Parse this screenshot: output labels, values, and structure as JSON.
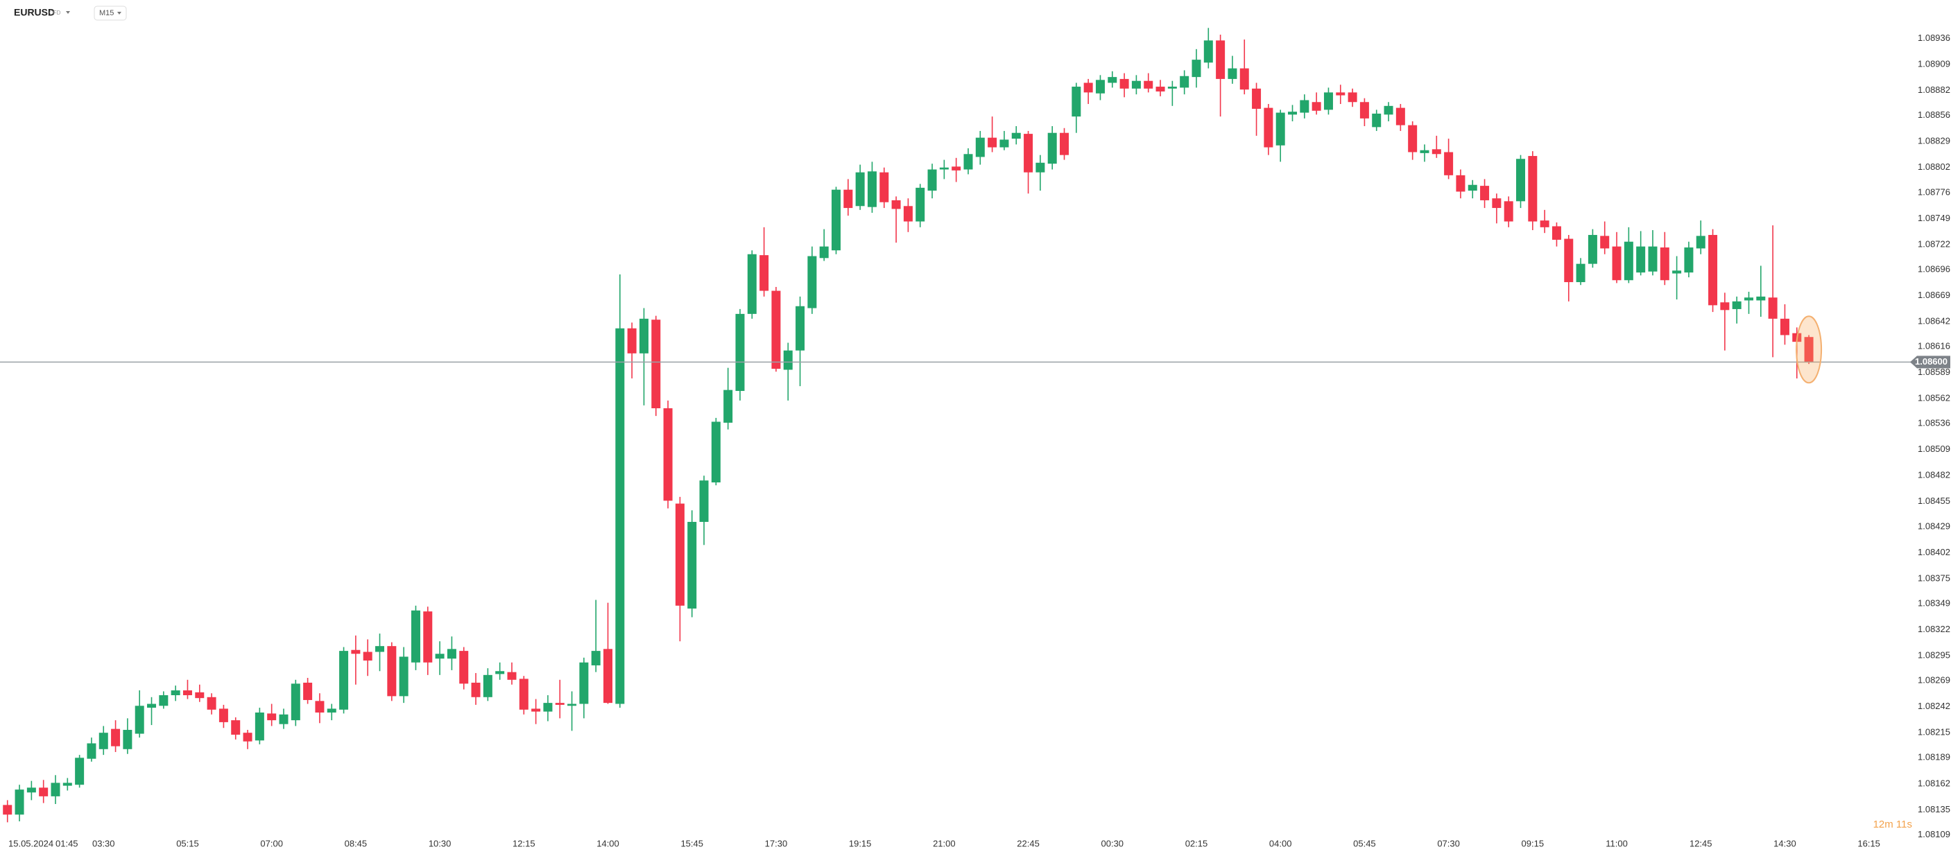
{
  "header": {
    "symbol": "EURUSD",
    "instrument_type": "CFD",
    "timeframe": "M15"
  },
  "chart_data": {
    "type": "candlestick",
    "up_color": "#22a66b",
    "down_color": "#f2364b",
    "date_label": "15.05.2024",
    "countdown": "12m 11s",
    "current_price": {
      "value": 1.086,
      "label": "1.08600"
    },
    "xlim": [
      -0.62,
      158.6
    ],
    "xticks": [
      {
        "value": 1,
        "label": "01:45"
      },
      {
        "value": 8,
        "label": "03:30"
      },
      {
        "value": 15,
        "label": "05:15"
      },
      {
        "value": 22,
        "label": "07:00"
      },
      {
        "value": 29,
        "label": "08:45"
      },
      {
        "value": 36,
        "label": "10:30"
      },
      {
        "value": 43,
        "label": "12:15"
      },
      {
        "value": 50,
        "label": "14:00"
      },
      {
        "value": 57,
        "label": "15:45"
      },
      {
        "value": 64,
        "label": "17:30"
      },
      {
        "value": 71,
        "label": "19:15"
      },
      {
        "value": 78,
        "label": "21:00"
      },
      {
        "value": 85,
        "label": "22:45"
      },
      {
        "value": 92,
        "label": "00:30"
      },
      {
        "value": 99,
        "label": "02:15"
      },
      {
        "value": 106,
        "label": "04:00"
      },
      {
        "value": 113,
        "label": "05:45"
      },
      {
        "value": 120,
        "label": "07:30"
      },
      {
        "value": 127,
        "label": "09:15"
      },
      {
        "value": 134,
        "label": "11:00"
      },
      {
        "value": 141,
        "label": "12:45"
      },
      {
        "value": 148,
        "label": "14:30"
      },
      {
        "value": 155,
        "label": "16:15"
      }
    ],
    "ylim": [
      1.08105,
      1.08976
    ],
    "yticks": [
      1.08936,
      1.08909,
      1.08882,
      1.08856,
      1.08829,
      1.08802,
      1.08776,
      1.08749,
      1.08722,
      1.08696,
      1.08669,
      1.08642,
      1.08616,
      1.08589,
      1.08562,
      1.08536,
      1.08509,
      1.08482,
      1.08455,
      1.08429,
      1.08402,
      1.08375,
      1.08349,
      1.08322,
      1.08295,
      1.08269,
      1.08242,
      1.08215,
      1.08189,
      1.08162,
      1.08135,
      1.08109
    ],
    "open": [
      1.0814,
      1.0813,
      1.08153,
      1.08158,
      1.08149,
      1.0816,
      1.08161,
      1.08188,
      1.08198,
      1.08219,
      1.08198,
      1.08214,
      1.08241,
      1.08243,
      1.08254,
      1.08259,
      1.08257,
      1.08252,
      1.0824,
      1.08228,
      1.08215,
      1.08207,
      1.08235,
      1.08224,
      1.08228,
      1.08267,
      1.08248,
      1.08236,
      1.08239,
      1.08301,
      1.08299,
      1.08299,
      1.08305,
      1.08253,
      1.08288,
      1.08341,
      1.08292,
      1.08292,
      1.083,
      1.08267,
      1.08252,
      1.08276,
      1.08278,
      1.08271,
      1.0824,
      1.08237,
      1.08246,
      1.08243,
      1.08245,
      1.08285,
      1.08302,
      1.08245,
      1.08635,
      1.08609,
      1.08644,
      1.08552,
      1.08453,
      1.08344,
      1.08434,
      1.08475,
      1.08537,
      1.0857,
      1.0865,
      1.08711,
      1.08674,
      1.08592,
      1.08612,
      1.08656,
      1.08708,
      1.08716,
      1.08779,
      1.08762,
      1.08761,
      1.08797,
      1.08768,
      1.08762,
      1.08746,
      1.08778,
      1.088,
      1.08803,
      1.088,
      1.08813,
      1.08833,
      1.08823,
      1.08832,
      1.08837,
      1.08797,
      1.08806,
      1.08838,
      1.08855,
      1.0889,
      1.08879,
      1.0889,
      1.08894,
      1.08884,
      1.08892,
      1.08886,
      1.08884,
      1.08885,
      1.08896,
      1.08911,
      1.08934,
      1.08894,
      1.08905,
      1.08884,
      1.08864,
      1.08825,
      1.08857,
      1.08859,
      1.0887,
      1.08862,
      1.0888,
      1.0888,
      1.0887,
      1.08844,
      1.08857,
      1.08864,
      1.08846,
      1.08817,
      1.08821,
      1.08818,
      1.08794,
      1.08778,
      1.08783,
      1.0877,
      1.08767,
      1.08767,
      1.08814,
      1.08747,
      1.08741,
      1.08728,
      1.08683,
      1.08702,
      1.08731,
      1.0872,
      1.08685,
      1.08693,
      1.08694,
      1.08719,
      1.08692,
      1.08693,
      1.08718,
      1.08732,
      1.08662,
      1.08655,
      1.08664,
      1.08664,
      1.08667,
      1.08645,
      1.0863,
      1.08626
    ],
    "high": [
      1.08145,
      1.08161,
      1.08165,
      1.08166,
      1.08171,
      1.08168,
      1.08192,
      1.0821,
      1.08222,
      1.08228,
      1.0823,
      1.08259,
      1.08252,
      1.08258,
      1.08264,
      1.0827,
      1.08265,
      1.08256,
      1.08244,
      1.08231,
      1.08218,
      1.08241,
      1.08245,
      1.0824,
      1.0827,
      1.08272,
      1.08256,
      1.08245,
      1.08304,
      1.08316,
      1.08312,
      1.08318,
      1.08309,
      1.08304,
      1.08347,
      1.08346,
      1.0831,
      1.08315,
      1.08304,
      1.08277,
      1.08282,
      1.08288,
      1.08288,
      1.08274,
      1.0825,
      1.08254,
      1.0827,
      1.08258,
      1.08293,
      1.08353,
      1.0835,
      1.08691,
      1.08641,
      1.08656,
      1.08648,
      1.0856,
      1.0846,
      1.08446,
      1.08482,
      1.08542,
      1.08594,
      1.08655,
      1.08716,
      1.0874,
      1.08678,
      1.0862,
      1.08668,
      1.0872,
      1.08738,
      1.08782,
      1.0879,
      1.08805,
      1.08808,
      1.08802,
      1.08772,
      1.0877,
      1.08785,
      1.08806,
      1.0881,
      1.08812,
      1.08822,
      1.0884,
      1.08855,
      1.0884,
      1.08845,
      1.0884,
      1.08815,
      1.08845,
      1.08843,
      1.0889,
      1.08894,
      1.08898,
      1.08902,
      1.089,
      1.08898,
      1.089,
      1.08893,
      1.08892,
      1.08903,
      1.08925,
      1.08947,
      1.0894,
      1.08918,
      1.08935,
      1.0889,
      1.08868,
      1.08862,
      1.08867,
      1.08878,
      1.0888,
      1.08885,
      1.08888,
      1.08884,
      1.08874,
      1.08862,
      1.0887,
      1.08868,
      1.0885,
      1.08826,
      1.08835,
      1.08832,
      1.088,
      1.08789,
      1.0879,
      1.08775,
      1.08772,
      1.08815,
      1.08819,
      1.08758,
      1.08745,
      1.08732,
      1.08708,
      1.08738,
      1.08746,
      1.08735,
      1.0874,
      1.08736,
      1.08737,
      1.08735,
      1.0871,
      1.08725,
      1.08747,
      1.08738,
      1.08672,
      1.08668,
      1.08673,
      1.087,
      1.08742,
      1.0866,
      1.08636,
      1.08628
    ],
    "low": [
      1.08122,
      1.08123,
      1.08145,
      1.08142,
      1.08141,
      1.08155,
      1.08158,
      1.08185,
      1.08192,
      1.08195,
      1.08193,
      1.0821,
      1.08223,
      1.0824,
      1.08248,
      1.0825,
      1.08247,
      1.08234,
      1.0822,
      1.08208,
      1.08198,
      1.08203,
      1.08222,
      1.08219,
      1.08222,
      1.08245,
      1.08225,
      1.08228,
      1.08235,
      1.08265,
      1.08274,
      1.08279,
      1.08248,
      1.08246,
      1.0828,
      1.08275,
      1.08275,
      1.0828,
      1.0826,
      1.08244,
      1.08248,
      1.0827,
      1.08265,
      1.08234,
      1.08224,
      1.08227,
      1.0823,
      1.08217,
      1.0823,
      1.08278,
      1.08245,
      1.08241,
      1.08583,
      1.08555,
      1.08544,
      1.08448,
      1.0831,
      1.08335,
      1.0841,
      1.08472,
      1.0853,
      1.0856,
      1.08645,
      1.08668,
      1.0859,
      1.0856,
      1.08575,
      1.0865,
      1.08705,
      1.08712,
      1.08752,
      1.08758,
      1.08755,
      1.0876,
      1.08724,
      1.08735,
      1.0874,
      1.0877,
      1.0879,
      1.08787,
      1.08795,
      1.08805,
      1.08818,
      1.0882,
      1.08826,
      1.08775,
      1.08778,
      1.088,
      1.0881,
      1.08838,
      1.08868,
      1.08872,
      1.08885,
      1.08875,
      1.08878,
      1.0888,
      1.08876,
      1.08866,
      1.08878,
      1.08885,
      1.08905,
      1.08855,
      1.08889,
      1.08878,
      1.08835,
      1.08815,
      1.08808,
      1.0885,
      1.08853,
      1.08857,
      1.08857,
      1.08868,
      1.08865,
      1.08845,
      1.0884,
      1.0885,
      1.0884,
      1.0881,
      1.08808,
      1.08812,
      1.0879,
      1.0877,
      1.0877,
      1.0876,
      1.08744,
      1.0874,
      1.0876,
      1.08737,
      1.08734,
      1.0872,
      1.08663,
      1.0868,
      1.08698,
      1.08712,
      1.08682,
      1.08682,
      1.0869,
      1.0869,
      1.0868,
      1.08665,
      1.08688,
      1.08712,
      1.08652,
      1.08612,
      1.0864,
      1.0865,
      1.08647,
      1.08605,
      1.08618,
      1.08583,
      1.08598
    ],
    "close": [
      1.0813,
      1.08156,
      1.08158,
      1.08149,
      1.08163,
      1.08163,
      1.08189,
      1.08204,
      1.08215,
      1.08201,
      1.08218,
      1.08243,
      1.08245,
      1.08254,
      1.08259,
      1.08254,
      1.08251,
      1.08239,
      1.08226,
      1.08213,
      1.08206,
      1.08236,
      1.08228,
      1.08234,
      1.08266,
      1.08249,
      1.08236,
      1.0824,
      1.083,
      1.08297,
      1.0829,
      1.08305,
      1.08253,
      1.08294,
      1.08342,
      1.08288,
      1.08297,
      1.08302,
      1.08266,
      1.08252,
      1.08275,
      1.08279,
      1.0827,
      1.08239,
      1.08237,
      1.08246,
      1.08244,
      1.08245,
      1.08288,
      1.083,
      1.08246,
      1.08635,
      1.08609,
      1.08645,
      1.08552,
      1.08456,
      1.08347,
      1.08434,
      1.08477,
      1.08538,
      1.08571,
      1.0865,
      1.08712,
      1.08674,
      1.08593,
      1.08612,
      1.08658,
      1.0871,
      1.0872,
      1.08779,
      1.0876,
      1.08797,
      1.08798,
      1.08766,
      1.08759,
      1.08746,
      1.08781,
      1.088,
      1.08802,
      1.08799,
      1.08816,
      1.08833,
      1.08823,
      1.08831,
      1.08838,
      1.08797,
      1.08807,
      1.08838,
      1.08815,
      1.08886,
      1.0888,
      1.08893,
      1.08896,
      1.08884,
      1.08892,
      1.08884,
      1.08881,
      1.08886,
      1.08897,
      1.08914,
      1.08934,
      1.08894,
      1.08905,
      1.08883,
      1.08863,
      1.08823,
      1.08859,
      1.0886,
      1.08872,
      1.08861,
      1.0888,
      1.08877,
      1.0887,
      1.08853,
      1.08858,
      1.08866,
      1.08846,
      1.08818,
      1.0882,
      1.08816,
      1.08794,
      1.08777,
      1.08784,
      1.08768,
      1.0876,
      1.08746,
      1.08811,
      1.08746,
      1.0874,
      1.08727,
      1.08683,
      1.08702,
      1.08732,
      1.08718,
      1.08685,
      1.08725,
      1.0872,
      1.0872,
      1.08685,
      1.08695,
      1.08719,
      1.08731,
      1.08659,
      1.08654,
      1.08663,
      1.08667,
      1.08668,
      1.08645,
      1.08628,
      1.08621,
      1.086
    ]
  }
}
